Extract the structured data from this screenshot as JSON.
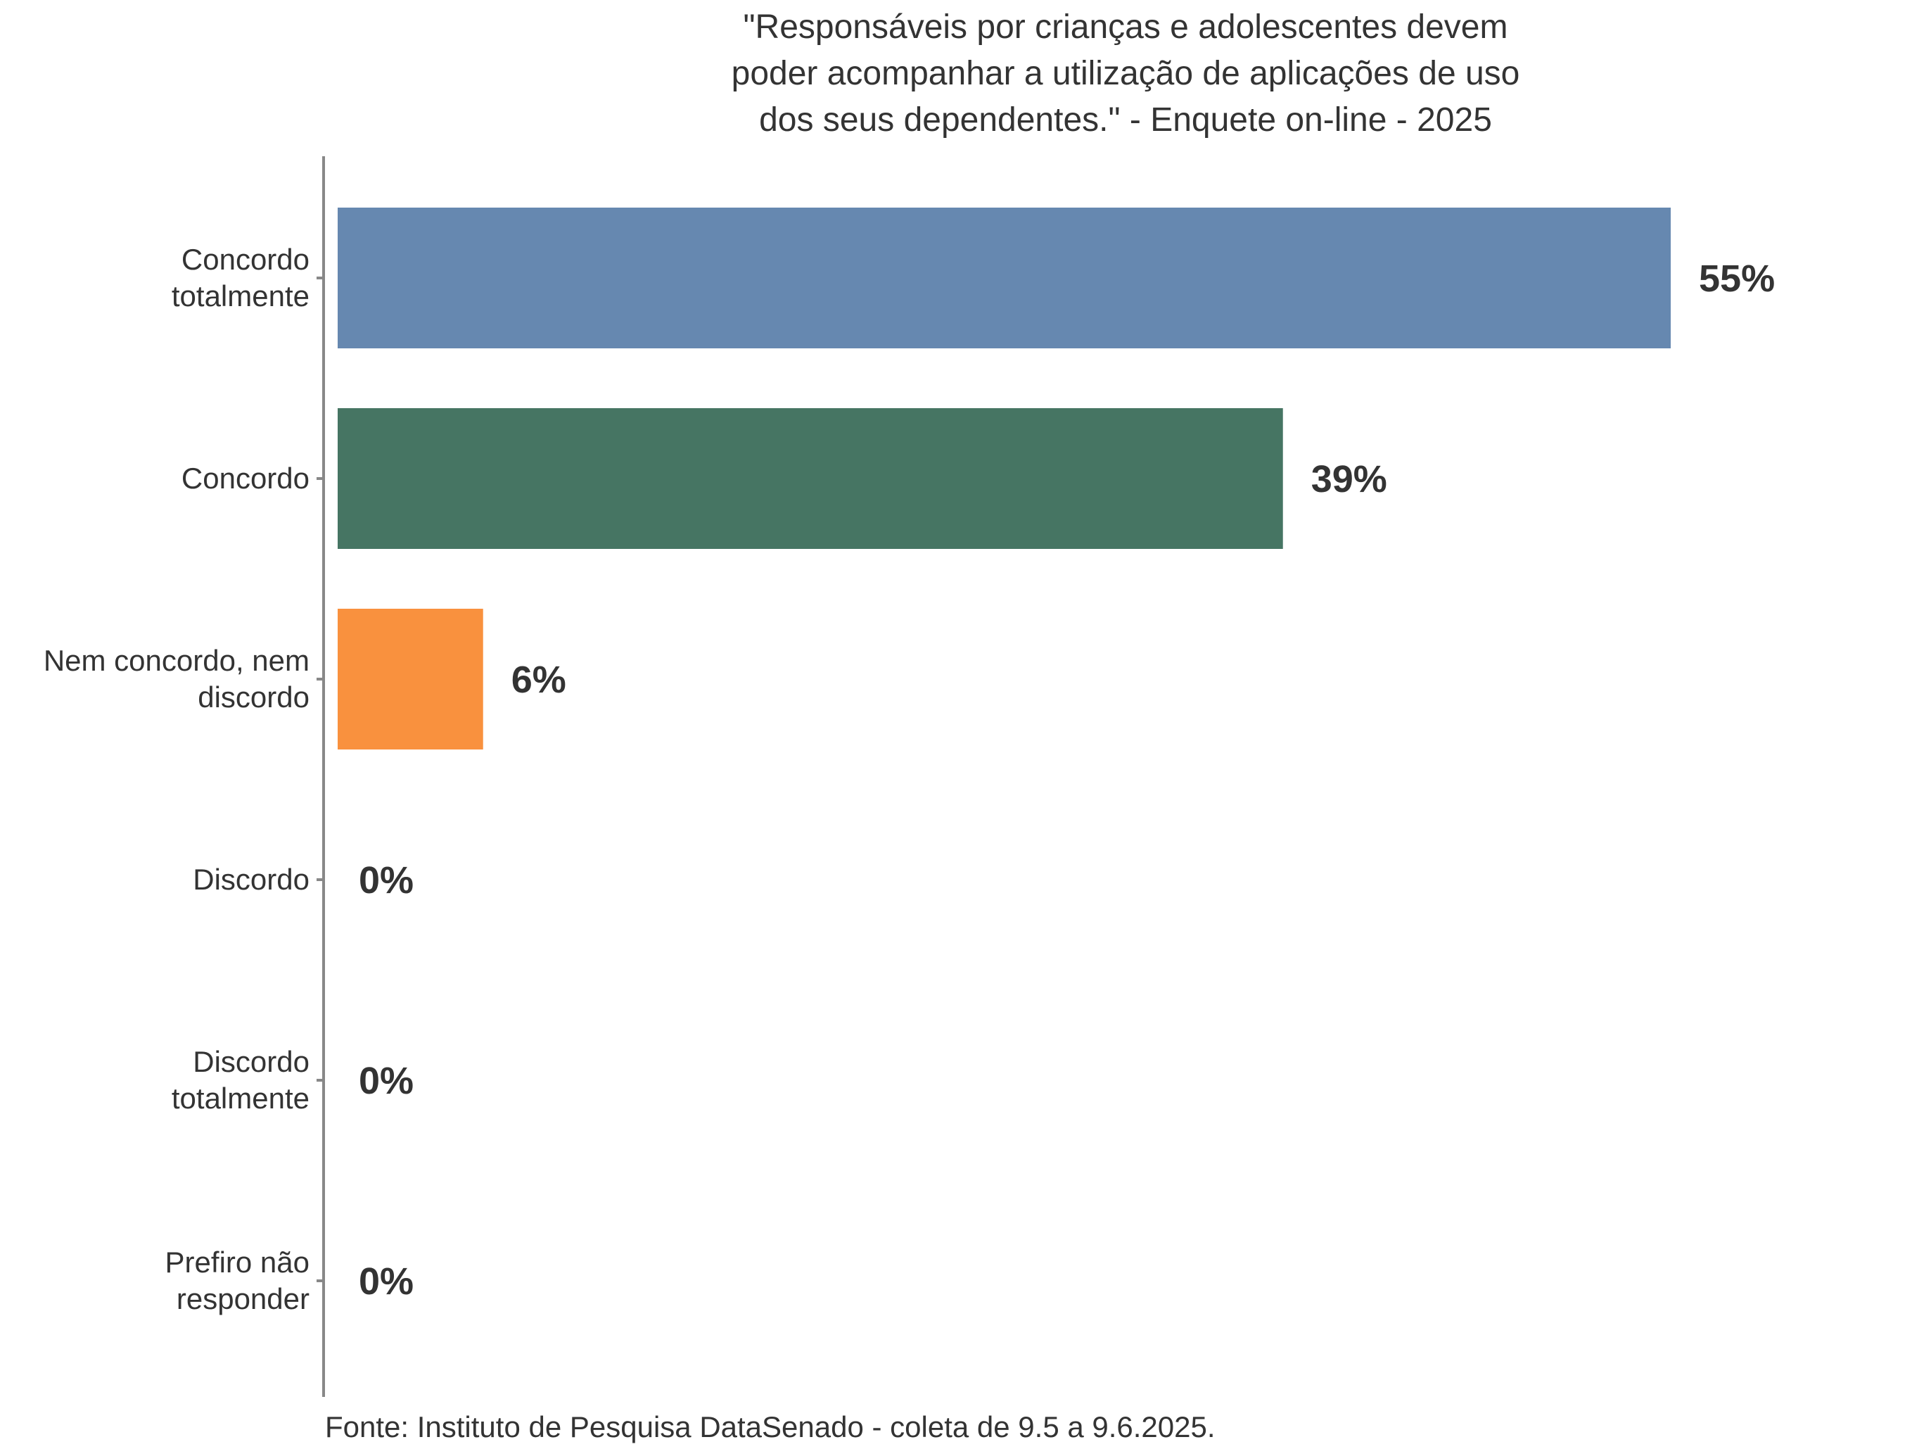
{
  "chart_data": {
    "type": "bar",
    "orientation": "horizontal",
    "title_lines": [
      "\"Responsáveis por crianças e adolescentes devem",
      "poder acompanhar a utilização de aplicações de uso",
      "dos seus dependentes.\" - Enquete on-line - 2025"
    ],
    "categories": [
      [
        "Concordo",
        "totalmente"
      ],
      [
        "Concordo"
      ],
      [
        "Nem concordo, nem",
        "discordo"
      ],
      [
        "Discordo"
      ],
      [
        "Discordo",
        "totalmente"
      ],
      [
        "Prefiro não",
        "responder"
      ]
    ],
    "values": [
      55,
      39,
      6,
      0,
      0,
      0
    ],
    "value_labels": [
      "55%",
      "39%",
      "6%",
      "0%",
      "0%",
      "0%"
    ],
    "colors": [
      "#6688b0",
      "#467563",
      "#f9913e",
      "#999999",
      "#999999",
      "#999999"
    ],
    "xlim": [
      0,
      55
    ],
    "grid": false,
    "legend": "none",
    "source": "Fonte: Instituto de Pesquisa DataSenado - coleta de 9.5 a 9.6.2025.",
    "axis_color": "#888888"
  }
}
